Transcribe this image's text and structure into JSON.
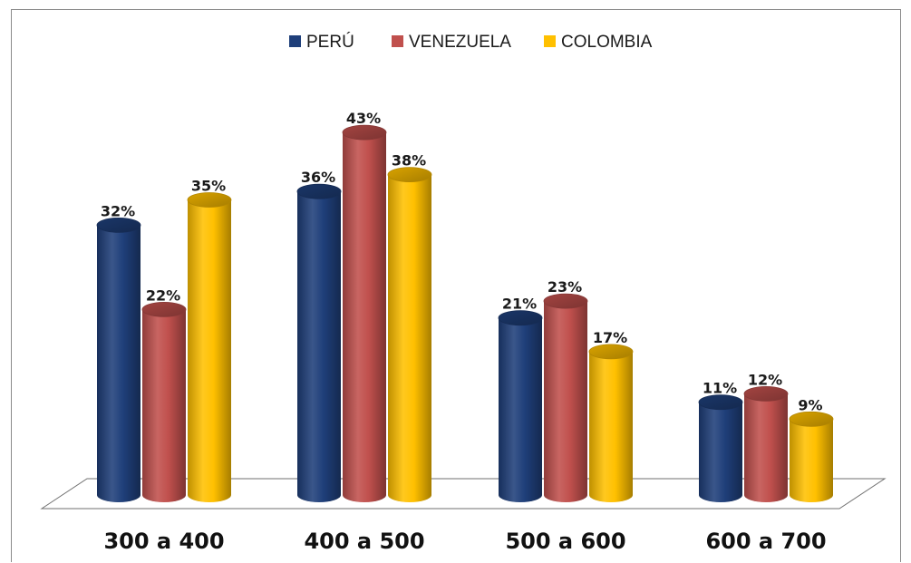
{
  "chart_data": {
    "type": "bar",
    "title": "",
    "xlabel": "",
    "ylabel": "",
    "categories": [
      "300 a 400",
      "400 a 500",
      "500 a 600",
      "600 a 700"
    ],
    "series": [
      {
        "name": "PERÚ",
        "values": [
          32,
          36,
          21,
          11
        ],
        "labels": [
          "32%",
          "36%",
          "21%",
          "11%"
        ],
        "color": "#1f3f7a"
      },
      {
        "name": "VENEZUELA",
        "values": [
          22,
          43,
          23,
          12
        ],
        "labels": [
          "22%",
          "43%",
          "23%",
          "12%"
        ],
        "color": "#c0504d"
      },
      {
        "name": "COLOMBIA",
        "values": [
          35,
          38,
          17,
          9
        ],
        "labels": [
          "35%",
          "38%",
          "17%",
          "9%"
        ],
        "color": "#ffc000"
      }
    ],
    "unit": "%",
    "ylim": [
      0,
      50
    ],
    "legend_position": "top",
    "grid": false,
    "style": "3d-cylinder"
  }
}
